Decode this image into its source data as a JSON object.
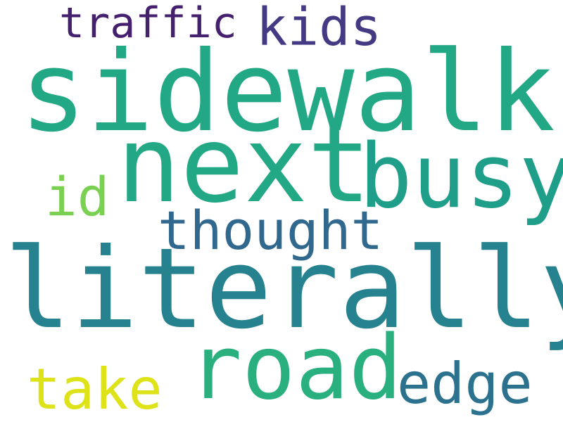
{
  "words": [
    {
      "key": "traffic",
      "text": "traffic",
      "color": "#44206e"
    },
    {
      "key": "kids",
      "text": "kids",
      "color": "#443983"
    },
    {
      "key": "sidewalk",
      "text": "sidewalk",
      "color": "#22a884"
    },
    {
      "key": "next",
      "text": "next",
      "color": "#22a884"
    },
    {
      "key": "busy",
      "text": "busy",
      "color": "#1f9e89"
    },
    {
      "key": "id",
      "text": "id",
      "color": "#7ad151"
    },
    {
      "key": "thought",
      "text": "thought",
      "color": "#31688e"
    },
    {
      "key": "literally",
      "text": "literally",
      "color": "#26828e"
    },
    {
      "key": "road",
      "text": "road",
      "color": "#2ab07f"
    },
    {
      "key": "take",
      "text": "take",
      "color": "#dde318"
    },
    {
      "key": "edge",
      "text": "edge",
      "color": "#2c728e"
    }
  ]
}
